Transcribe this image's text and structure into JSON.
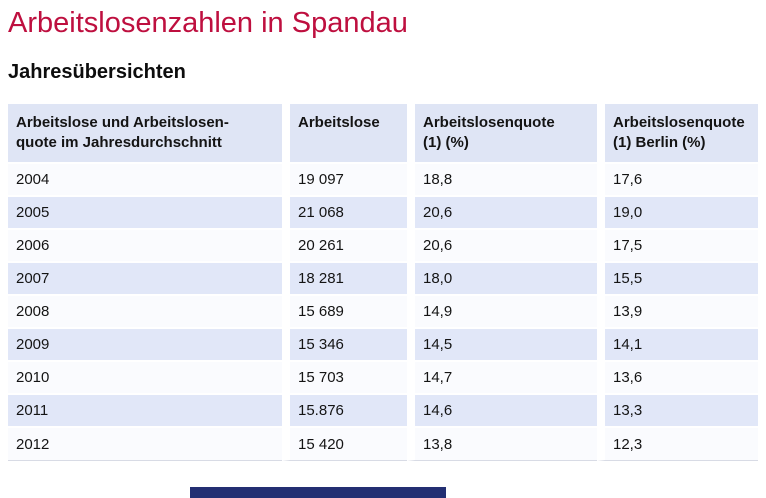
{
  "page": {
    "title": "Arbeitslosenzahlen in Spandau",
    "subtitle": "Jahresübersichten"
  },
  "table": {
    "columns": [
      [
        "Arbeitslose und Arbeitslosen-",
        "quote im Jahresdurchschnitt"
      ],
      [
        "Arbeitslose"
      ],
      [
        "Arbeitslosenquote",
        "(1) (%)"
      ],
      [
        "Arbeitslosenquote",
        "(1) Berlin (%)"
      ]
    ],
    "rows": [
      [
        "2004",
        "19 097",
        "18,8",
        "17,6"
      ],
      [
        "2005",
        "21 068",
        "20,6",
        "19,0"
      ],
      [
        "2006",
        "20 261",
        "20,6",
        "17,5"
      ],
      [
        "2007",
        "18 281",
        "18,0",
        "15,5"
      ],
      [
        "2008",
        "15 689",
        "14,9",
        "13,9"
      ],
      [
        "2009",
        "15 346",
        "14,5",
        "14,1"
      ],
      [
        "2010",
        "15 703",
        "14,7",
        "13,6"
      ],
      [
        "2011",
        "15.876",
        "14,6",
        "13,3"
      ],
      [
        "2012",
        "15 420",
        "13,8",
        "12,3"
      ]
    ]
  },
  "colors": {
    "title": "#be0f3f",
    "header_bg": "#dfe5f5",
    "row_bg": "#fafbfe",
    "row_alt_bg": "#e1e7f8",
    "bottom_bar": "#232f72"
  }
}
